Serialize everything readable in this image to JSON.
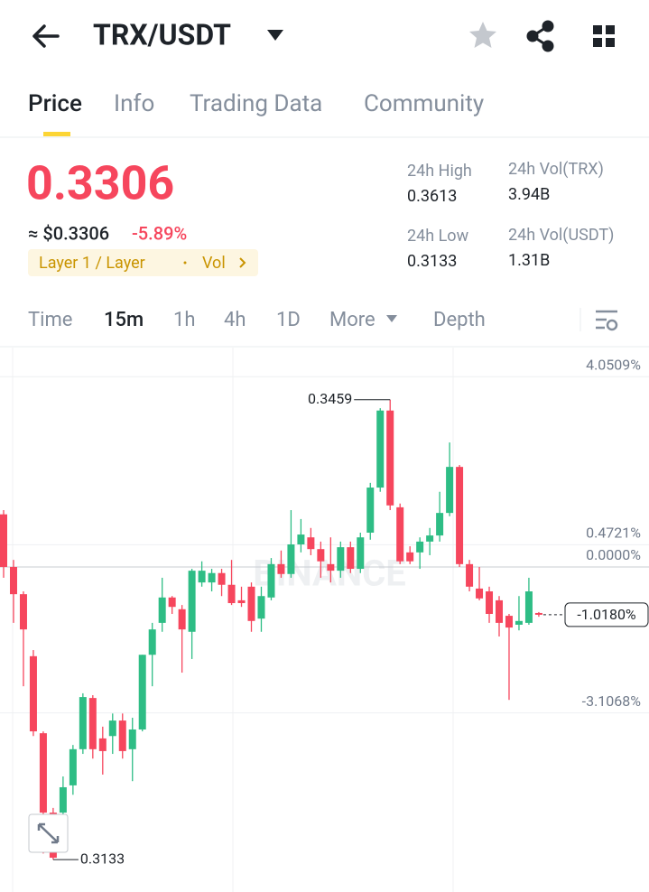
{
  "header": {
    "title": "TRX/USDT"
  },
  "tabs": [
    "Price",
    "Info",
    "Trading Data",
    "Community"
  ],
  "price": {
    "last": "0.3306",
    "usd": "≈ $0.3306",
    "change": "-5.89%",
    "tag": "Layer 1 / Layer",
    "tag_vol": "Vol"
  },
  "stats": [
    {
      "label": "24h High",
      "value": "0.3613"
    },
    {
      "label": "24h Vol(TRX)",
      "value": "3.94B"
    },
    {
      "label": "24h Low",
      "value": "0.3133"
    },
    {
      "label": "24h Vol(USDT)",
      "value": "1.31B"
    }
  ],
  "intervals": [
    "Time",
    "15m",
    "1h",
    "4h",
    "1D",
    "More",
    "Depth"
  ],
  "chart_data": {
    "type": "candlestick",
    "watermark": "BINANCE",
    "up_color": "#2ebd85",
    "down_color": "#f6465d",
    "ylim": [
      -6.92,
      4.67
    ],
    "yticks": [
      {
        "value": 4.0509,
        "label": "4.0509%"
      },
      {
        "value": 0.4721,
        "label": "0.4721%"
      },
      {
        "value": 0,
        "label": "0.0000%"
      },
      {
        "value": -3.1068,
        "label": "-3.1068%"
      }
    ],
    "current_label": "-1.0180%",
    "high_label": "0.3459",
    "low_label": "0.3133",
    "open": [
      1.12,
      0,
      -0.58,
      -1.9,
      -3.54,
      -5.23,
      -5.23,
      -4.65,
      -3.88,
      -2.79,
      -3.65,
      -3.6,
      -3.27,
      -3.88,
      -3.46,
      -1.87,
      -1.19,
      -0.65,
      -0.9,
      -1.38,
      -0.33,
      -0.33,
      -0.13,
      -0.38,
      -0.71,
      -0.42,
      -1.1,
      -0.65,
      0.06,
      -0.15,
      0.48,
      0.63,
      0.38,
      0.06,
      -0.08,
      0.42,
      -0.04,
      0.73,
      1.69,
      3.33,
      1.27,
      0.31,
      0.31,
      0.54,
      0.67,
      1.15,
      2.13,
      0.06,
      -0.46,
      -0.52,
      -0.71,
      -1.04,
      -1.23,
      -1.19,
      -0.98
    ],
    "high": [
      1.21,
      0.15,
      -0.52,
      -1.77,
      -3.5,
      -5.13,
      -4.46,
      -3.79,
      -2.69,
      -2.73,
      -3.4,
      -3.12,
      -3.12,
      -3.21,
      -1.87,
      -1.19,
      -0.23,
      -0.62,
      -0.81,
      -0.04,
      0.12,
      -0.04,
      -0.04,
      0.15,
      -0.42,
      -0.33,
      -0.42,
      0.19,
      0.35,
      1.21,
      1.02,
      0.83,
      0.54,
      0.63,
      0.54,
      0.54,
      0.73,
      1.79,
      3.38,
      3.56,
      1.35,
      0.44,
      0.63,
      0.83,
      1.6,
      2.65,
      2.17,
      0.15,
      0,
      -0.42,
      -0.62,
      -1.0,
      -0.62,
      -0.23,
      -0.96
    ],
    "low": [
      -0.23,
      -1.19,
      -2.54,
      -3.6,
      -6.1,
      -6.23,
      -5.33,
      -4.85,
      -3.98,
      -4.08,
      -4.42,
      -3.98,
      -4.08,
      -4.56,
      -3.5,
      -2.54,
      -1.38,
      -1.0,
      -2.25,
      -1.96,
      -0.42,
      -0.52,
      -0.62,
      -0.81,
      -0.85,
      -1.38,
      -1.38,
      -0.71,
      -0.23,
      -0.23,
      0.31,
      0.25,
      -0.23,
      -0.33,
      -0.23,
      -0.13,
      -0.13,
      0.58,
      1.6,
      1.21,
      0.06,
      0.06,
      -0.04,
      0.25,
      0.54,
      1.08,
      0,
      -0.52,
      -0.71,
      -1.19,
      -1.48,
      -2.83,
      -1.35,
      -1.23,
      -1.06
    ],
    "close": [
      0,
      -0.58,
      -1.33,
      -3.5,
      -5.23,
      -6.19,
      -4.69,
      -3.88,
      -2.77,
      -3.88,
      -3.92,
      -3.27,
      -3.92,
      -3.46,
      -1.87,
      -1.33,
      -0.65,
      -0.85,
      -1.33,
      -0.08,
      -0.08,
      -0.13,
      -0.38,
      -0.77,
      -0.77,
      -1.15,
      -0.62,
      0.06,
      -0.15,
      0.48,
      0.69,
      0.38,
      0.12,
      -0.08,
      0.42,
      -0.04,
      0.63,
      1.69,
      3.33,
      1.31,
      0.12,
      0.12,
      0.54,
      0.67,
      1.15,
      2.13,
      0.06,
      -0.42,
      -0.67,
      -1.0,
      -1.19,
      -1.29,
      -1.15,
      -0.52,
      -1.018
    ]
  }
}
